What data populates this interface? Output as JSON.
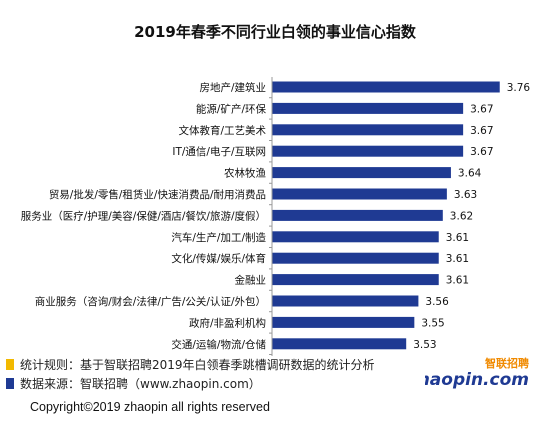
{
  "chart_data": {
    "type": "bar",
    "orientation": "horizontal",
    "title": "2019年春季不同行业白领的事业信心指数",
    "categories": [
      "房地产/建筑业",
      "能源/矿产/环保",
      "文体教育/工艺美术",
      "IT/通信/电子/互联网",
      "农林牧渔",
      "贸易/批发/零售/租赁业/快速消费品/耐用消费品",
      "服务业（医疗/护理/美容/保健/酒店/餐饮/旅游/度假）",
      "汽车/生产/加工/制造",
      "文化/传媒/娱乐/体育",
      "金融业",
      "商业服务（咨询/财会/法律/广告/公关/认证/外包）",
      "政府/非盈利机构",
      "交通/运输/物流/仓储"
    ],
    "values": [
      3.76,
      3.67,
      3.67,
      3.67,
      3.64,
      3.63,
      3.62,
      3.61,
      3.61,
      3.61,
      3.56,
      3.55,
      3.53
    ],
    "value_labels": [
      "3.76",
      "3.67",
      "3.67",
      "3.67",
      "3.64",
      "3.63",
      "3.62",
      "3.61",
      "3.61",
      "3.61",
      "3.56",
      "3.55",
      "3.53"
    ],
    "xlim": [
      3.2,
      3.8
    ],
    "bar_color": "#1f3a93",
    "grid": false
  },
  "notes": {
    "rule_bullet_color": "#f2b900",
    "rule_text": "统计规则：基于智联招聘2019年白领春季跳槽调研数据的统计分析",
    "source_bullet_color": "#1f3a93",
    "source_text": "数据来源：智联招聘（www.zhaopin.com）"
  },
  "footer": {
    "copyright": "Copyright©2019 zhaopin all rights reserved"
  },
  "logo": {
    "cn_text": "智联招聘",
    "en_text": "zhaopin.com"
  }
}
